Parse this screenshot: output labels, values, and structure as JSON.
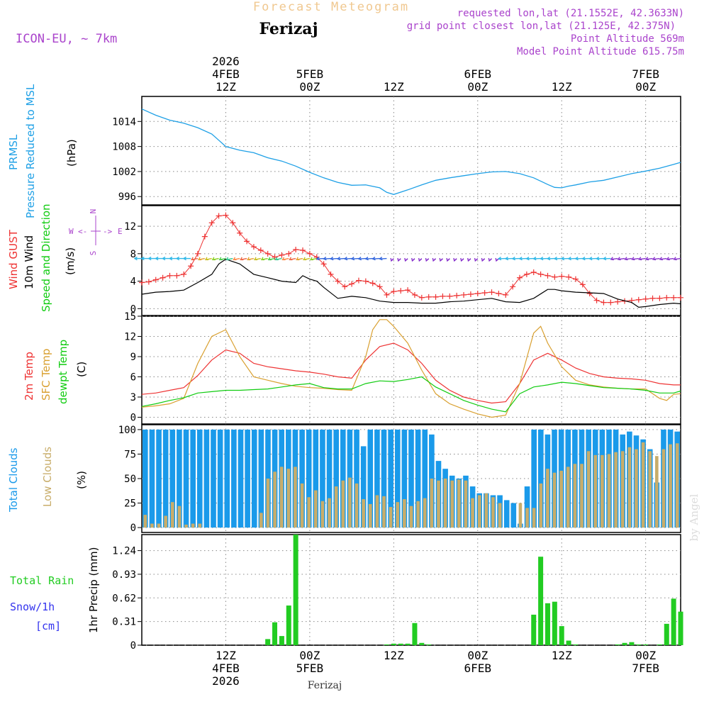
{
  "header": {
    "product_title": "Forecast Meteogram",
    "station": "Ferizaj",
    "model": "ICON-EU, ~ 7km",
    "requested": "requested lon,lat (21.1552E, 42.3633N)",
    "grid_point": "grid point closest lon,lat (21.125E, 42.375N)",
    "point_altitude": "Point Altitude 569m",
    "model_altitude": "Model Point Altitude 615.75m",
    "footer_station": "Ferizaj",
    "credit": "by Angel"
  },
  "colors": {
    "pressure": "#1ea0e6",
    "gust": "#ee3333",
    "wind": "#000000",
    "temp": "#ee3333",
    "sfc_temp": "#d9a030",
    "dewpt": "#11cc11",
    "total_clouds": "#1a9aea",
    "low_clouds": "#c8ad6a",
    "rain": "#22cc22",
    "snow_label": "#3333ee",
    "purple": "#aa44cc"
  },
  "chart_data": [
    {
      "id": "time-axis",
      "type": "axis",
      "top_labels": [
        {
          "hour": 12,
          "lines": [
            "2026",
            "4FEB",
            "12Z"
          ]
        },
        {
          "hour": 24,
          "lines": [
            "5FEB",
            "00Z"
          ]
        },
        {
          "hour": 36,
          "lines": [
            "12Z"
          ]
        },
        {
          "hour": 48,
          "lines": [
            "6FEB",
            "00Z"
          ]
        },
        {
          "hour": 60,
          "lines": [
            "12Z"
          ]
        },
        {
          "hour": 72,
          "lines": [
            "7FEB",
            "00Z"
          ]
        }
      ],
      "bottom_labels": [
        {
          "hour": 12,
          "lines": [
            "12Z",
            "4FEB",
            "2026"
          ]
        },
        {
          "hour": 24,
          "lines": [
            "00Z",
            "5FEB"
          ]
        },
        {
          "hour": 36,
          "lines": [
            "12Z"
          ]
        },
        {
          "hour": 48,
          "lines": [
            "00Z",
            "6FEB"
          ]
        },
        {
          "hour": 60,
          "lines": [
            "12Z"
          ]
        },
        {
          "hour": 72,
          "lines": [
            "00Z",
            "7FEB"
          ]
        }
      ],
      "xlim": [
        0,
        77
      ]
    },
    {
      "id": "pressure",
      "type": "line",
      "title": "PRMSL Pressure Reduced to MSL",
      "left_label_1": "PRMSL",
      "left_label_2": "Pressure Reduced to MSL",
      "ylabel": "(hPa)",
      "ylim": [
        994,
        1020
      ],
      "yticks": [
        996,
        1002,
        1008,
        1014
      ],
      "series": [
        {
          "name": "PRMSL",
          "x": [
            0,
            2,
            4,
            6,
            8,
            10,
            11,
            12,
            14,
            16,
            18,
            20,
            22,
            24,
            26,
            28,
            30,
            32,
            34,
            35,
            36,
            38,
            40,
            42,
            44,
            46,
            48,
            50,
            52,
            54,
            56,
            58,
            59,
            60,
            61,
            62,
            64,
            66,
            68,
            70,
            72,
            74,
            76,
            77
          ],
          "y": [
            1017,
            1015.5,
            1014.3,
            1013.6,
            1012.5,
            1011,
            1009.5,
            1008,
            1007.1,
            1006.5,
            1005.3,
            1004.5,
            1003.3,
            1001.8,
            1000.5,
            999.4,
            998.7,
            998.8,
            998.1,
            997,
            996.5,
            997.6,
            998.8,
            999.9,
            1000.5,
            1001,
            1001.5,
            1001.9,
            1002,
            1001.5,
            1000.5,
            998.9,
            998.2,
            998.1,
            998.5,
            998.8,
            999.5,
            999.9,
            1000.7,
            1001.5,
            1002.1,
            1002.8,
            1003.7,
            1004.2
          ]
        }
      ]
    },
    {
      "id": "wind",
      "type": "line",
      "left_label_1": "Wind GUST",
      "left_label_2": "10m Wind",
      "left_label_3": "Speed and Direction",
      "ylabel": "(m/s)",
      "compass": "N W <-|-> E S",
      "ylim": [
        -1,
        15
      ],
      "yticks": [
        0,
        4,
        8,
        12
      ],
      "arrow_level_ms": 7.3,
      "series": [
        {
          "name": "Wind GUST",
          "x": [
            0,
            1,
            2,
            3,
            4,
            5,
            6,
            7,
            8,
            9,
            10,
            11,
            12,
            13,
            14,
            15,
            16,
            17,
            18,
            19,
            20,
            21,
            22,
            23,
            24,
            25,
            26,
            27,
            28,
            29,
            30,
            31,
            32,
            33,
            34,
            35,
            36,
            37,
            38,
            39,
            40,
            41,
            42,
            43,
            44,
            45,
            46,
            47,
            48,
            49,
            50,
            51,
            52,
            53,
            54,
            55,
            56,
            57,
            58,
            59,
            60,
            61,
            62,
            63,
            64,
            65,
            66,
            67,
            68,
            69,
            70,
            71,
            72,
            73,
            74,
            75,
            76,
            77
          ],
          "y": [
            3.8,
            3.9,
            4.2,
            4.5,
            4.8,
            4.8,
            5.0,
            6.2,
            8.0,
            10.5,
            12.5,
            13.5,
            13.6,
            12.5,
            11.0,
            9.8,
            9.0,
            8.5,
            8.0,
            7.5,
            7.8,
            8.0,
            8.6,
            8.5,
            8.0,
            7.5,
            6.5,
            5.0,
            4.0,
            3.2,
            3.6,
            4.1,
            4.0,
            3.7,
            3.2,
            2.0,
            2.5,
            2.6,
            2.7,
            2.0,
            1.6,
            1.7,
            1.7,
            1.8,
            1.8,
            1.9,
            2.0,
            2.1,
            2.2,
            2.3,
            2.4,
            2.2,
            2.0,
            3.2,
            4.5,
            5.0,
            5.3,
            5.0,
            4.8,
            4.6,
            4.7,
            4.6,
            4.3,
            3.5,
            2.2,
            1.2,
            0.9,
            0.9,
            1.0,
            1.1,
            1.2,
            1.3,
            1.4,
            1.5,
            1.5,
            1.6,
            1.6,
            1.6
          ]
        },
        {
          "name": "10m Wind",
          "x": [
            0,
            2,
            4,
            6,
            8,
            10,
            11,
            12,
            14,
            16,
            18,
            20,
            22,
            23,
            24,
            25,
            26,
            28,
            30,
            32,
            34,
            36,
            38,
            40,
            42,
            44,
            46,
            48,
            50,
            52,
            54,
            56,
            58,
            59,
            60,
            62,
            64,
            66,
            68,
            70,
            71,
            72,
            74,
            76,
            77
          ],
          "y": [
            2.1,
            2.4,
            2.5,
            2.7,
            3.8,
            5.0,
            6.5,
            7.2,
            6.5,
            5.0,
            4.5,
            4.0,
            3.8,
            4.8,
            4.3,
            4.0,
            3.1,
            1.5,
            1.8,
            1.6,
            1.1,
            0.9,
            0.9,
            0.8,
            0.8,
            1.0,
            1.1,
            1.3,
            1.5,
            1.0,
            0.9,
            1.5,
            2.8,
            2.8,
            2.6,
            2.4,
            2.3,
            2.2,
            1.4,
            0.9,
            0.2,
            0.3,
            0.6,
            0.8,
            0.7
          ]
        }
      ]
    },
    {
      "id": "temperature",
      "type": "line",
      "left_label_1": "2m Temp",
      "left_label_2": "SFC Temp",
      "left_label_3": "dewpt Temp",
      "ylabel": "(C)",
      "ylim": [
        -1,
        15
      ],
      "yticks": [
        0,
        3,
        6,
        9,
        12,
        15
      ],
      "series": [
        {
          "name": "2m Temp",
          "x": [
            0,
            2,
            4,
            6,
            8,
            10,
            12,
            14,
            16,
            18,
            20,
            22,
            24,
            26,
            28,
            30,
            32,
            34,
            36,
            38,
            40,
            42,
            44,
            46,
            48,
            50,
            52,
            54,
            56,
            58,
            60,
            62,
            64,
            66,
            68,
            70,
            72,
            74,
            76,
            77
          ],
          "y": [
            3.4,
            3.6,
            4.0,
            4.4,
            6.2,
            8.5,
            10.0,
            9.5,
            8.0,
            7.5,
            7.2,
            6.9,
            6.7,
            6.4,
            6.0,
            5.8,
            8.5,
            10.5,
            11.0,
            10.0,
            8.0,
            5.5,
            4.0,
            3.0,
            2.5,
            2.1,
            2.3,
            5.0,
            8.5,
            9.5,
            8.5,
            7.3,
            6.5,
            6.0,
            5.8,
            5.7,
            5.5,
            5.0,
            4.8,
            4.8
          ]
        },
        {
          "name": "SFC Temp",
          "x": [
            0,
            2,
            4,
            6,
            8,
            10,
            12,
            14,
            16,
            18,
            20,
            22,
            24,
            26,
            28,
            30,
            32,
            33,
            34,
            35,
            36,
            38,
            40,
            42,
            44,
            46,
            48,
            50,
            52,
            54,
            56,
            57,
            58,
            60,
            62,
            64,
            66,
            68,
            70,
            72,
            74,
            75,
            76,
            77
          ],
          "y": [
            1.5,
            1.7,
            2.0,
            2.8,
            8.0,
            12.0,
            13.0,
            9.0,
            6.0,
            5.5,
            5.0,
            4.6,
            4.4,
            4.3,
            4.1,
            4.0,
            9.0,
            13.0,
            14.5,
            14.5,
            13.5,
            11.0,
            7.0,
            3.5,
            2.0,
            1.2,
            0.5,
            0.0,
            0.3,
            5.0,
            12.5,
            13.5,
            11.0,
            7.5,
            5.5,
            4.8,
            4.5,
            4.3,
            4.2,
            4.2,
            2.8,
            2.5,
            3.4,
            3.5
          ]
        },
        {
          "name": "dewpt Temp",
          "x": [
            0,
            2,
            4,
            6,
            8,
            10,
            12,
            14,
            16,
            18,
            20,
            22,
            24,
            26,
            28,
            30,
            32,
            34,
            36,
            38,
            40,
            42,
            44,
            46,
            48,
            50,
            52,
            54,
            56,
            58,
            60,
            62,
            64,
            66,
            68,
            70,
            72,
            74,
            76,
            77
          ],
          "y": [
            1.6,
            2.0,
            2.5,
            2.9,
            3.6,
            3.8,
            4.0,
            4.0,
            4.1,
            4.2,
            4.5,
            4.8,
            5.0,
            4.4,
            4.2,
            4.2,
            5.0,
            5.4,
            5.3,
            5.6,
            6.0,
            4.5,
            3.5,
            2.5,
            1.8,
            1.2,
            0.8,
            3.5,
            4.5,
            4.8,
            5.2,
            5.0,
            4.7,
            4.4,
            4.3,
            4.2,
            4.0,
            3.6,
            3.6,
            3.9
          ]
        }
      ]
    },
    {
      "id": "clouds",
      "type": "bar",
      "left_label_1": "Total Clouds",
      "left_label_2": "Low Clouds",
      "ylabel": "(%)",
      "ylim": [
        -5,
        105
      ],
      "yticks": [
        0,
        25,
        50,
        75,
        100
      ],
      "series": [
        {
          "name": "Total Clouds",
          "values": [
            100,
            100,
            100,
            100,
            100,
            100,
            100,
            100,
            100,
            100,
            100,
            100,
            100,
            100,
            100,
            100,
            100,
            100,
            100,
            100,
            100,
            100,
            100,
            100,
            100,
            100,
            100,
            100,
            100,
            100,
            100,
            100,
            83,
            100,
            100,
            100,
            100,
            100,
            100,
            100,
            100,
            100,
            95,
            68,
            60,
            53,
            50,
            53,
            42,
            35,
            35,
            33,
            33,
            28,
            25,
            4,
            42,
            100,
            100,
            95,
            100,
            100,
            100,
            100,
            100,
            100,
            100,
            100,
            100,
            100,
            95,
            98,
            94,
            90,
            80,
            46,
            100,
            100,
            98
          ]
        },
        {
          "name": "Low Clouds",
          "values": [
            13,
            4,
            4,
            12,
            26,
            22,
            3,
            4,
            4,
            0,
            0,
            0,
            0,
            0,
            0,
            0,
            0,
            15,
            50,
            57,
            62,
            60,
            62,
            45,
            31,
            38,
            27,
            30,
            42,
            48,
            51,
            45,
            29,
            24,
            33,
            32,
            21,
            26,
            29,
            22,
            27,
            30,
            50,
            48,
            50,
            48,
            49,
            48,
            30,
            33,
            35,
            31,
            25,
            0,
            0,
            25,
            20,
            20,
            45,
            60,
            56,
            58,
            62,
            65,
            65,
            78,
            74,
            74,
            75,
            77,
            78,
            82,
            80,
            87,
            78,
            73,
            80,
            85,
            86
          ]
        }
      ]
    },
    {
      "id": "precip",
      "type": "bar",
      "left_label_1": "Total  Rain",
      "left_label_2": "Snow/1h",
      "left_label_3": "[cm]",
      "ylabel": "1hr Precip (mm)",
      "ylim": [
        0,
        1.45
      ],
      "yticks": [
        0,
        0.31,
        0.62,
        0.93,
        1.24
      ],
      "series": [
        {
          "name": "Total Rain",
          "x": [
            18,
            19,
            20,
            21,
            22,
            35,
            36,
            37,
            38,
            39,
            40,
            41,
            56,
            57,
            58,
            59,
            60,
            61,
            62,
            68,
            69,
            70,
            71,
            72,
            74,
            75,
            76,
            77
          ],
          "values": [
            0.08,
            0.3,
            0.12,
            0.52,
            1.45,
            0.01,
            0.02,
            0.02,
            0.02,
            0.29,
            0.03,
            0.01,
            0.4,
            1.16,
            0.55,
            0.57,
            0.25,
            0.06,
            0.01,
            0.01,
            0.03,
            0.04,
            0.01,
            0.01,
            0.01,
            0.28,
            0.61,
            0.44
          ]
        }
      ]
    }
  ]
}
